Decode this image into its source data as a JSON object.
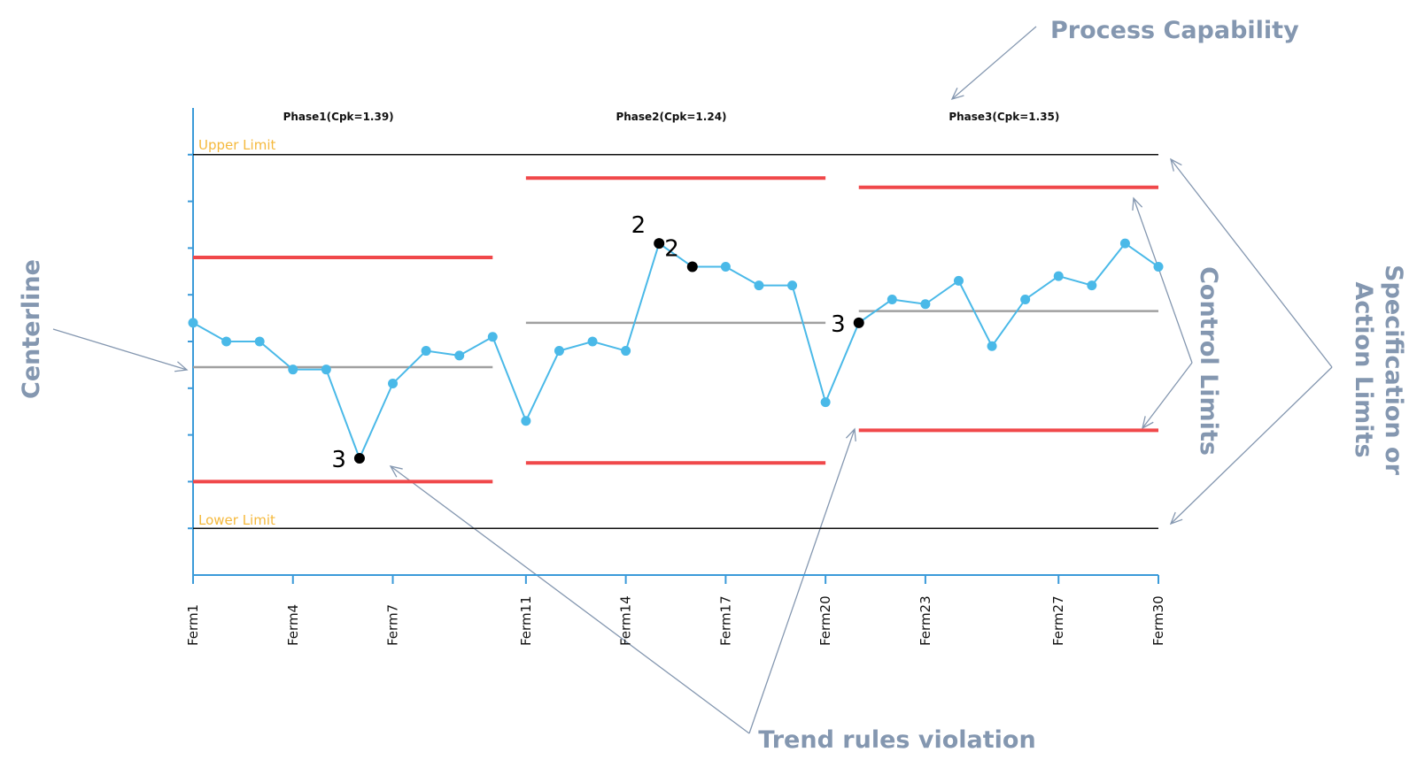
{
  "chart_data": {
    "type": "line",
    "x": [
      "Ferm1",
      "Ferm2",
      "Ferm3",
      "Ferm4",
      "Ferm5",
      "Ferm6",
      "Ferm7",
      "Ferm8",
      "Ferm9",
      "Ferm10",
      "Ferm11",
      "Ferm12",
      "Ferm13",
      "Ferm14",
      "Ferm15",
      "Ferm16",
      "Ferm17",
      "Ferm18",
      "Ferm19",
      "Ferm20",
      "Ferm21",
      "Ferm22",
      "Ferm23",
      "Ferm24",
      "Ferm25",
      "Ferm26",
      "Ferm27",
      "Ferm28",
      "Ferm29",
      "Ferm30"
    ],
    "values": [
      5.4,
      5.0,
      5.0,
      4.4,
      4.4,
      2.5,
      4.1,
      4.8,
      4.7,
      5.1,
      3.3,
      4.8,
      5.0,
      4.8,
      7.1,
      6.6,
      6.6,
      6.2,
      6.2,
      3.7,
      5.4,
      5.9,
      5.8,
      6.3,
      4.9,
      5.9,
      6.4,
      6.2,
      7.1,
      6.6
    ],
    "tick_labels": [
      "Ferm1",
      "Ferm4",
      "Ferm7",
      "Ferm11",
      "Ferm14",
      "Ferm17",
      "Ferm20",
      "Ferm23",
      "Ferm27",
      "Ferm30"
    ],
    "ylim": [
      0,
      10
    ],
    "specification_limits": {
      "upper": {
        "label": "Upper Limit",
        "value": 9
      },
      "lower": {
        "label": "Lower Limit",
        "value": 1
      }
    },
    "phases": [
      {
        "title": "Phase1(Cpk=1.39)",
        "start": 0,
        "end": 9,
        "ucl": 6.8,
        "center": 4.45,
        "lcl": 2.0
      },
      {
        "title": "Phase2(Cpk=1.24)",
        "start": 10,
        "end": 19,
        "ucl": 8.5,
        "center": 5.4,
        "lcl": 2.4
      },
      {
        "title": "Phase3(Cpk=1.35)",
        "start": 20,
        "end": 29,
        "ucl": 8.3,
        "center": 5.65,
        "lcl": 3.1
      }
    ],
    "violations": [
      {
        "index": 5,
        "label": "3"
      },
      {
        "index": 14,
        "label": "2"
      },
      {
        "index": 15,
        "label": "2"
      },
      {
        "index": 20,
        "label": "3"
      }
    ],
    "annotations": {
      "process_capability": "Process Capability",
      "centerline": "Centerline",
      "control_limits": "Control Limits",
      "spec_limits_line1": "Specification or",
      "spec_limits_line2": "Action Limits",
      "trend_rules": "Trend rules violation"
    },
    "colors": {
      "series": "#4ab9e8",
      "control_limit": "#f0484a",
      "centerline": "#a0a0a0",
      "spec_limit": "#111111",
      "violation": "#000000",
      "axis": "#3a9ad9",
      "annotation": "#8497b0",
      "limit_label": "#f5b93d"
    }
  }
}
